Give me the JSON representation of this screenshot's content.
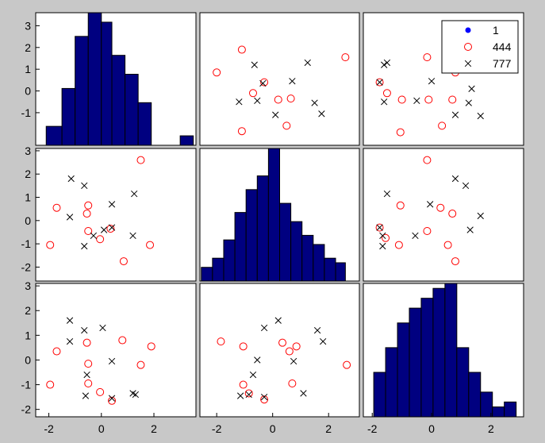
{
  "colors": {
    "figure_bg": "#c8c8c8",
    "axes_bg": "#ffffff",
    "bar_fill": "#000080",
    "bar_edge": "#000000",
    "group_1": "#0000ff",
    "group_444": "#ff0000",
    "group_777": "#000000",
    "legend_faded_label": "#a0a0a0"
  },
  "chart_data": {
    "type": "scatter",
    "subtype": "scatter-matrix (gplotmatrix)",
    "grid": false,
    "variables": 3,
    "axis_ranges": [
      [
        -2.5,
        3.6
      ],
      [
        -2.6,
        3.1
      ],
      [
        -2.3,
        3.1
      ]
    ],
    "row_ticks": [
      [
        "-1",
        "0",
        "1",
        "2",
        "3"
      ],
      [
        "-2",
        "-1",
        "0",
        "1",
        "2",
        "3"
      ],
      [
        "-2",
        "-1",
        "0",
        "1",
        "2",
        "3"
      ]
    ],
    "col_ticks": [
      [
        "-2",
        "0",
        "2"
      ],
      [
        "-2",
        "0",
        "2"
      ],
      [
        "-2",
        "0",
        "2"
      ]
    ],
    "legend": {
      "placement": "top-right",
      "entries": [
        {
          "label": "1",
          "marker": "dot",
          "color": "#0000ff",
          "faded": true
        },
        {
          "label": "444",
          "marker": "circle",
          "color": "#ff0000"
        },
        {
          "label": "777",
          "marker": "x",
          "color": "#000000"
        }
      ]
    },
    "histograms": [
      {
        "var": 1,
        "bins": [
          {
            "x0": -2.1,
            "x1": -1.5,
            "h": 0.4
          },
          {
            "x0": -1.5,
            "x1": -1.0,
            "h": 1.2
          },
          {
            "x0": -1.0,
            "x1": -0.5,
            "h": 2.3
          },
          {
            "x0": -0.5,
            "x1": 0.0,
            "h": 2.8
          },
          {
            "x0": 0.0,
            "x1": 0.4,
            "h": 2.6
          },
          {
            "x0": 0.4,
            "x1": 0.9,
            "h": 1.9
          },
          {
            "x0": 0.9,
            "x1": 1.4,
            "h": 1.5
          },
          {
            "x0": 1.4,
            "x1": 1.9,
            "h": 0.9
          },
          {
            "x0": 3.0,
            "x1": 3.5,
            "h": 0.2
          }
        ]
      },
      {
        "var": 2,
        "bins": [
          {
            "x0": -2.55,
            "x1": -2.15,
            "h": 0.15
          },
          {
            "x0": -2.15,
            "x1": -1.75,
            "h": 0.25
          },
          {
            "x0": -1.75,
            "x1": -1.35,
            "h": 0.45
          },
          {
            "x0": -1.35,
            "x1": -0.95,
            "h": 0.75
          },
          {
            "x0": -0.95,
            "x1": -0.55,
            "h": 1.0
          },
          {
            "x0": -0.55,
            "x1": -0.15,
            "h": 1.15
          },
          {
            "x0": -0.15,
            "x1": 0.25,
            "h": 1.45
          },
          {
            "x0": 0.25,
            "x1": 0.65,
            "h": 0.85
          },
          {
            "x0": 0.65,
            "x1": 1.05,
            "h": 0.65
          },
          {
            "x0": 1.05,
            "x1": 1.45,
            "h": 0.5
          },
          {
            "x0": 1.45,
            "x1": 1.85,
            "h": 0.4
          },
          {
            "x0": 1.85,
            "x1": 2.25,
            "h": 0.25
          },
          {
            "x0": 2.25,
            "x1": 2.6,
            "h": 0.2
          }
        ]
      },
      {
        "var": 3,
        "bins": [
          {
            "x0": -1.95,
            "x1": -1.55,
            "h": 0.45
          },
          {
            "x0": -1.55,
            "x1": -1.15,
            "h": 0.7
          },
          {
            "x0": -1.15,
            "x1": -0.75,
            "h": 0.95
          },
          {
            "x0": -0.75,
            "x1": -0.35,
            "h": 1.1
          },
          {
            "x0": -0.35,
            "x1": 0.05,
            "h": 1.2
          },
          {
            "x0": 0.05,
            "x1": 0.45,
            "h": 1.3
          },
          {
            "x0": 0.45,
            "x1": 0.85,
            "h": 1.35
          },
          {
            "x0": 0.85,
            "x1": 1.25,
            "h": 0.7
          },
          {
            "x0": 1.25,
            "x1": 1.65,
            "h": 0.45
          },
          {
            "x0": 1.65,
            "x1": 2.05,
            "h": 0.25
          },
          {
            "x0": 2.05,
            "x1": 2.45,
            "h": 0.1
          },
          {
            "x0": 2.45,
            "x1": 2.85,
            "h": 0.15
          }
        ]
      }
    ],
    "scatters": [
      {
        "row": 1,
        "col": 2,
        "series": [
          {
            "group": "444",
            "points": [
              [
                -2.0,
                0.85
              ],
              [
                -1.1,
                1.9
              ],
              [
                -1.1,
                -1.85
              ],
              [
                -0.7,
                -0.1
              ],
              [
                -0.3,
                0.4
              ],
              [
                0.2,
                -0.4
              ],
              [
                0.5,
                -1.6
              ],
              [
                0.65,
                -0.35
              ],
              [
                2.6,
                1.55
              ]
            ]
          },
          {
            "group": "777",
            "points": [
              [
                -1.2,
                -0.5
              ],
              [
                -0.65,
                1.2
              ],
              [
                -0.55,
                -0.45
              ],
              [
                -0.35,
                0.35
              ],
              [
                0.1,
                -1.1
              ],
              [
                0.7,
                0.45
              ],
              [
                1.25,
                1.3
              ],
              [
                1.5,
                -0.55
              ],
              [
                1.75,
                -1.05
              ]
            ]
          }
        ]
      },
      {
        "row": 1,
        "col": 3,
        "series": [
          {
            "group": "444",
            "points": [
              [
                -1.75,
                0.4
              ],
              [
                -1.5,
                -0.1
              ],
              [
                -1.05,
                -1.9
              ],
              [
                -1.0,
                -0.4
              ],
              [
                -0.15,
                1.55
              ],
              [
                -0.1,
                -0.4
              ],
              [
                0.35,
                -1.6
              ],
              [
                0.7,
                -0.4
              ],
              [
                0.8,
                0.85
              ]
            ]
          },
          {
            "group": "777",
            "points": [
              [
                -1.75,
                0.4
              ],
              [
                -1.6,
                1.2
              ],
              [
                -1.5,
                1.3
              ],
              [
                -1.6,
                -0.5
              ],
              [
                -0.5,
                -0.45
              ],
              [
                0.0,
                0.45
              ],
              [
                0.8,
                -1.1
              ],
              [
                1.25,
                -0.55
              ],
              [
                1.35,
                0.1
              ],
              [
                1.65,
                -1.15
              ]
            ]
          }
        ]
      },
      {
        "row": 2,
        "col": 1,
        "series": [
          {
            "group": "444",
            "points": [
              [
                -1.95,
                -1.05
              ],
              [
                -1.7,
                0.55
              ],
              [
                -0.5,
                0.65
              ],
              [
                -0.55,
                0.3
              ],
              [
                -0.5,
                -0.45
              ],
              [
                -0.05,
                -0.8
              ],
              [
                0.35,
                -0.35
              ],
              [
                0.85,
                -1.75
              ],
              [
                1.5,
                2.6
              ],
              [
                1.85,
                -1.05
              ]
            ]
          },
          {
            "group": "777",
            "points": [
              [
                -1.2,
                0.15
              ],
              [
                -1.15,
                1.8
              ],
              [
                -0.65,
                1.5
              ],
              [
                -0.65,
                -1.1
              ],
              [
                -0.3,
                -0.65
              ],
              [
                0.1,
                -0.4
              ],
              [
                0.4,
                -0.3
              ],
              [
                0.4,
                0.7
              ],
              [
                1.25,
                1.15
              ],
              [
                1.2,
                -0.65
              ]
            ]
          }
        ]
      },
      {
        "row": 2,
        "col": 3,
        "series": [
          {
            "group": "444",
            "points": [
              [
                -1.75,
                -0.3
              ],
              [
                -1.55,
                -0.75
              ],
              [
                -1.05,
                0.65
              ],
              [
                -1.1,
                -1.05
              ],
              [
                -0.15,
                2.6
              ],
              [
                -0.15,
                -0.45
              ],
              [
                0.3,
                0.55
              ],
              [
                0.55,
                -1.05
              ],
              [
                0.7,
                0.3
              ],
              [
                0.8,
                -1.75
              ]
            ]
          },
          {
            "group": "777",
            "points": [
              [
                -1.75,
                -0.3
              ],
              [
                -1.65,
                -0.65
              ],
              [
                -1.65,
                -1.1
              ],
              [
                -1.5,
                1.15
              ],
              [
                -0.55,
                -0.65
              ],
              [
                -0.05,
                0.7
              ],
              [
                0.8,
                1.8
              ],
              [
                1.15,
                1.5
              ],
              [
                1.3,
                -0.4
              ],
              [
                1.65,
                0.2
              ]
            ]
          }
        ]
      },
      {
        "row": 3,
        "col": 1,
        "series": [
          {
            "group": "444",
            "points": [
              [
                -1.95,
                -1.0
              ],
              [
                -1.7,
                0.35
              ],
              [
                -0.55,
                0.7
              ],
              [
                -0.5,
                -0.15
              ],
              [
                -0.5,
                -0.95
              ],
              [
                -0.05,
                -1.3
              ],
              [
                0.4,
                -1.65
              ],
              [
                0.8,
                0.8
              ],
              [
                1.5,
                -0.2
              ],
              [
                1.9,
                0.55
              ]
            ]
          },
          {
            "group": "777",
            "points": [
              [
                -1.2,
                1.6
              ],
              [
                -1.2,
                0.75
              ],
              [
                -0.65,
                1.2
              ],
              [
                -0.55,
                -0.6
              ],
              [
                -0.6,
                -1.45
              ],
              [
                0.05,
                1.3
              ],
              [
                0.4,
                -0.05
              ],
              [
                0.4,
                -1.55
              ],
              [
                1.2,
                -1.35
              ],
              [
                1.3,
                -1.4
              ]
            ]
          }
        ]
      },
      {
        "row": 3,
        "col": 2,
        "series": [
          {
            "group": "444",
            "points": [
              [
                -1.85,
                0.75
              ],
              [
                -1.05,
                0.55
              ],
              [
                -1.05,
                -1.0
              ],
              [
                -0.85,
                -1.35
              ],
              [
                -0.3,
                -1.6
              ],
              [
                0.35,
                0.7
              ],
              [
                0.6,
                0.35
              ],
              [
                0.7,
                -0.95
              ],
              [
                0.85,
                0.55
              ],
              [
                2.65,
                -0.2
              ]
            ]
          },
          {
            "group": "777",
            "points": [
              [
                -1.15,
                -1.45
              ],
              [
                -0.85,
                -1.4
              ],
              [
                -0.7,
                -0.6
              ],
              [
                -0.55,
                0.0
              ],
              [
                -0.3,
                1.3
              ],
              [
                -0.3,
                -1.5
              ],
              [
                0.2,
                1.6
              ],
              [
                0.75,
                -0.05
              ],
              [
                1.1,
                -1.35
              ],
              [
                1.6,
                1.2
              ],
              [
                1.8,
                0.75
              ]
            ]
          }
        ]
      }
    ]
  }
}
